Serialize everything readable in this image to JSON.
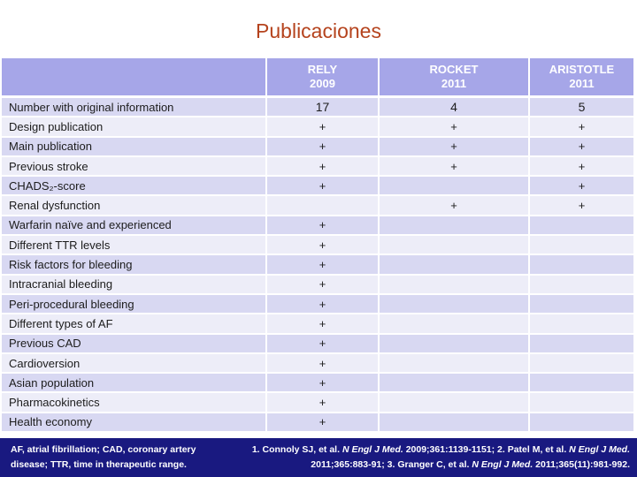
{
  "title": "Publicaciones",
  "table": {
    "columns": [
      {
        "trial": "RELY",
        "year": "2009"
      },
      {
        "trial": "ROCKET",
        "year": "2011"
      },
      {
        "trial": "ARISTOTLE",
        "year": "2011"
      }
    ],
    "rows": [
      {
        "label": "Number with original information",
        "values": [
          "17",
          "4",
          "5"
        ]
      },
      {
        "label": "Design publication",
        "values": [
          "+",
          "+",
          "+"
        ]
      },
      {
        "label": "Main publication",
        "values": [
          "+",
          "+",
          "+"
        ]
      },
      {
        "label": "Previous stroke",
        "values": [
          "+",
          "+",
          "+"
        ]
      },
      {
        "label": "CHADS₂-score",
        "values": [
          "+",
          "",
          "+"
        ]
      },
      {
        "label": "Renal dysfunction",
        "values": [
          "",
          "+",
          "+"
        ]
      },
      {
        "label": "Warfarin naïve and experienced",
        "values": [
          "+",
          "",
          ""
        ]
      },
      {
        "label": "Different TTR levels",
        "values": [
          "+",
          "",
          ""
        ]
      },
      {
        "label": "Risk factors for bleeding",
        "values": [
          "+",
          "",
          ""
        ]
      },
      {
        "label": "Intracranial bleeding",
        "values": [
          "+",
          "",
          ""
        ]
      },
      {
        "label": "Peri-procedural bleeding",
        "values": [
          "+",
          "",
          ""
        ]
      },
      {
        "label": "Different types of AF",
        "values": [
          "+",
          "",
          ""
        ]
      },
      {
        "label": "Previous CAD",
        "values": [
          "+",
          "",
          ""
        ]
      },
      {
        "label": "Cardioversion",
        "values": [
          "+",
          "",
          ""
        ]
      },
      {
        "label": "Asian population",
        "values": [
          "+",
          "",
          ""
        ]
      },
      {
        "label": "Pharmacokinetics",
        "values": [
          "+",
          "",
          ""
        ]
      },
      {
        "label": "Health economy",
        "values": [
          "+",
          "",
          ""
        ]
      }
    ]
  },
  "footer": {
    "abbreviations": "AF, atrial fibrillation; CAD, coronary artery disease; TTR, time in therapeutic range.",
    "reference_segments": [
      {
        "text": "1.   Connoly SJ, et al. ",
        "italic": false
      },
      {
        "text": "N Engl J Med.",
        "italic": true
      },
      {
        "text": " 2009;361:1139-1151; 2. Patel M, et al. ",
        "italic": false
      },
      {
        "text": "N Engl J Med.",
        "italic": true
      },
      {
        "text": " 2011;365:883-91; 3. Granger C, et al. ",
        "italic": false
      },
      {
        "text": "N Engl J Med.",
        "italic": true
      },
      {
        "text": " 2011;365(11):981-992.",
        "italic": false
      }
    ]
  },
  "colors": {
    "title_text": "#b5431d",
    "header_bg": "#a6a6e8",
    "row_dark_bg": "#d8d8f2",
    "row_light_bg": "#ededf8",
    "footer_bg": "#191980",
    "footer_text": "#ffffff"
  }
}
